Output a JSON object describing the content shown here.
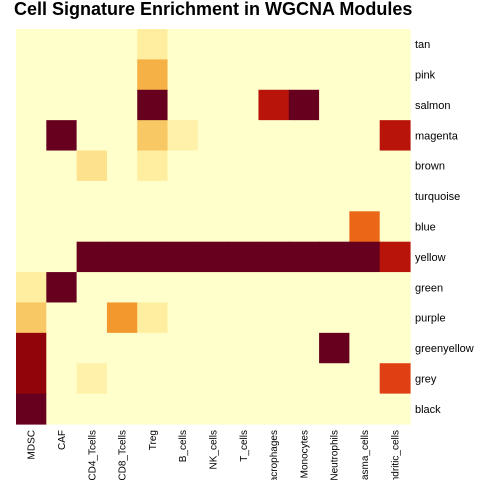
{
  "chart_data": {
    "type": "heatmap",
    "title": "Cell Signature Enrichment in WGCNA Modules",
    "columns": [
      "MDSC",
      "CAF",
      "CD4_Tcells",
      "CD8_Tcells",
      "Treg",
      "B_cells",
      "NK_cells",
      "T_cells",
      "Macrophages",
      "Monocytes",
      "Neutrophils",
      "Plasma_cells",
      "Dendritic_cells"
    ],
    "rows": [
      "tan",
      "pink",
      "salmon",
      "magenta",
      "brown",
      "turquoise",
      "blue",
      "yellow",
      "green",
      "purple",
      "greenyellow",
      "grey",
      "black"
    ],
    "scale": {
      "min": 0,
      "max": 1,
      "low_color": "#ffffcc",
      "high_color": "#67001f"
    },
    "values": [
      [
        0,
        0,
        0,
        0,
        0.1,
        0,
        0,
        0,
        0,
        0,
        0,
        0,
        0
      ],
      [
        0,
        0,
        0,
        0,
        0.35,
        0,
        0,
        0,
        0,
        0,
        0,
        0,
        0
      ],
      [
        0,
        0,
        0,
        0,
        1.0,
        0,
        0,
        0,
        0.85,
        1.0,
        0,
        0,
        0
      ],
      [
        0,
        1.0,
        0,
        0,
        0.25,
        0.08,
        0,
        0,
        0,
        0,
        0,
        0,
        0.85
      ],
      [
        0,
        0,
        0.15,
        0,
        0.1,
        0,
        0,
        0,
        0,
        0,
        0,
        0,
        0
      ],
      [
        0,
        0,
        0,
        0,
        0,
        0,
        0,
        0,
        0,
        0,
        0,
        0,
        0
      ],
      [
        0,
        0,
        0,
        0,
        0,
        0,
        0,
        0,
        0,
        0,
        0,
        0.6,
        0
      ],
      [
        0,
        0,
        1.0,
        1.0,
        1.0,
        1.0,
        1.0,
        1.0,
        1.0,
        1.0,
        1.0,
        1.0,
        0.85
      ],
      [
        0.1,
        1.0,
        0,
        0,
        0,
        0,
        0,
        0,
        0,
        0,
        0,
        0,
        0
      ],
      [
        0.25,
        0,
        0,
        0.45,
        0.1,
        0,
        0,
        0,
        0,
        0,
        0,
        0,
        0
      ],
      [
        0.93,
        0,
        0,
        0,
        0,
        0,
        0,
        0,
        0,
        0,
        1.0,
        0,
        0
      ],
      [
        0.93,
        0,
        0.08,
        0,
        0,
        0,
        0,
        0,
        0,
        0,
        0,
        0,
        0.7
      ],
      [
        1.0,
        0,
        0,
        0,
        0,
        0,
        0,
        0,
        0,
        0,
        0,
        0,
        0
      ]
    ],
    "legend": "none",
    "grid": false
  }
}
